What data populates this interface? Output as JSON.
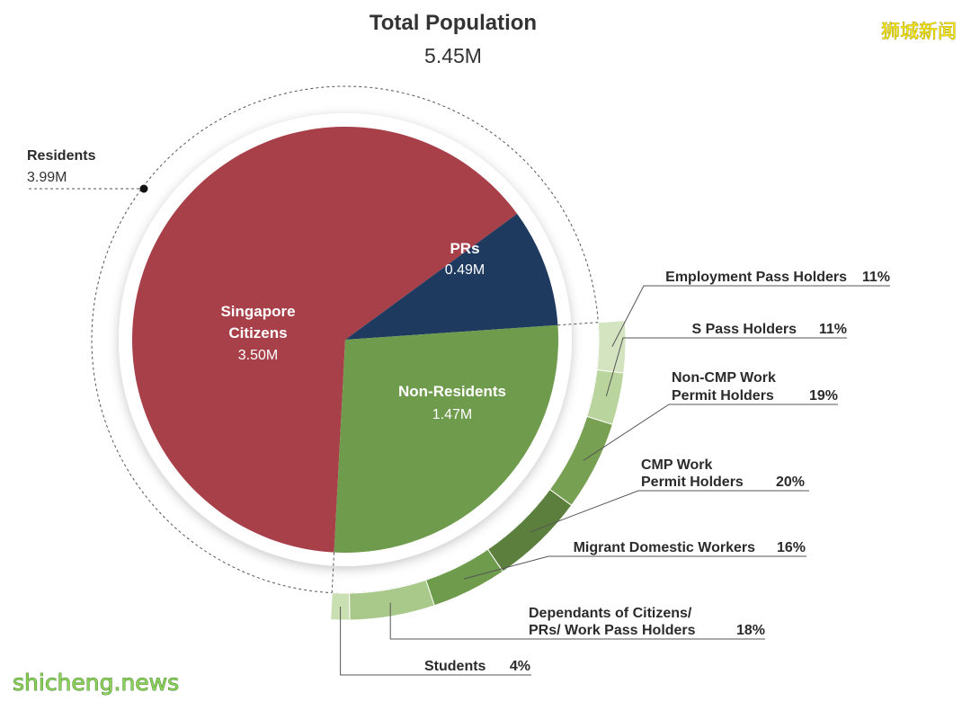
{
  "chart_data": {
    "type": "pie",
    "title": "Total Population",
    "subtitle": "5.45M",
    "main_slices": [
      {
        "label": "Singapore Citizens",
        "line1": "Singapore",
        "line2": "Citizens",
        "value_label": "3.50M",
        "value": 3.5,
        "color": "#a8404a"
      },
      {
        "label": "PRs",
        "line1": "PRs",
        "line2": "",
        "value_label": "0.49M",
        "value": 0.49,
        "color": "#1e3a5f"
      },
      {
        "label": "Non-Residents",
        "line1": "Non-Residents",
        "line2": "",
        "value_label": "1.47M",
        "value": 1.47,
        "color": "#6e9b4c"
      }
    ],
    "group_label": {
      "label": "Residents",
      "value_label": "3.99M"
    },
    "breakdown": {
      "parent": "Non-Residents",
      "segments": [
        {
          "line1": "Employment Pass Holders",
          "line2": "",
          "pct_label": "11%",
          "pct": 11,
          "color": "#d4e3c0"
        },
        {
          "line1": "S Pass Holders",
          "line2": "",
          "pct_label": "11%",
          "pct": 11,
          "color": "#b9d49c"
        },
        {
          "line1": "Non-CMP Work",
          "line2": "Permit Holders",
          "pct_label": "19%",
          "pct": 19,
          "color": "#78a052"
        },
        {
          "line1": "CMP Work",
          "line2": "Permit Holders",
          "pct_label": "20%",
          "pct": 20,
          "color": "#5c7f3d"
        },
        {
          "line1": "Migrant Domestic Workers",
          "line2": "",
          "pct_label": "16%",
          "pct": 16,
          "color": "#6e9b4c"
        },
        {
          "line1": "Dependants of Citizens/",
          "line2": "PRs/ Work Pass Holders",
          "pct_label": "18%",
          "pct": 18,
          "color": "#a9c98a"
        },
        {
          "line1": "Students",
          "line2": "",
          "pct_label": "4%",
          "pct": 4,
          "color": "#cadfb2"
        }
      ]
    }
  },
  "watermark": {
    "brand": "狮城新闻",
    "site": "shicheng.news"
  }
}
